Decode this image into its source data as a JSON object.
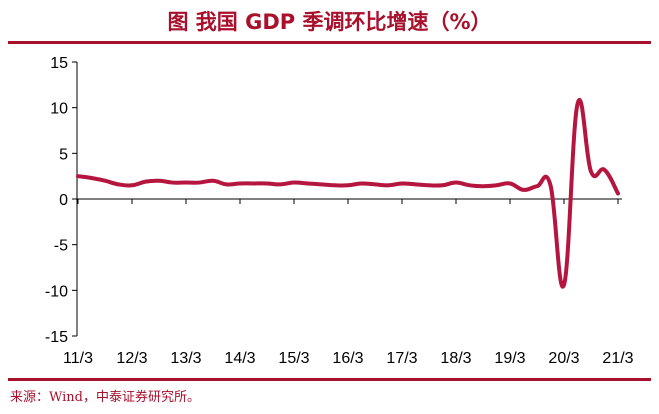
{
  "figure": {
    "title": "图  我国 GDP 季调环比增速（%）",
    "source": "来源：Wind，中泰证券研究所。"
  },
  "chart_data": {
    "type": "line",
    "title": "图  我国 GDP 季调环比增速（%）",
    "xlabel": "",
    "ylabel": "",
    "ylim": [
      -15,
      15
    ],
    "yticks": [
      15,
      10,
      5,
      0,
      -5,
      -10,
      -15
    ],
    "xticks": [
      "11/3",
      "12/3",
      "13/3",
      "14/3",
      "15/3",
      "16/3",
      "17/3",
      "18/3",
      "19/3",
      "20/3",
      "21/3"
    ],
    "grid": false,
    "legend": "none",
    "color": "#b5163f",
    "x": [
      "11/3",
      "11/6",
      "11/9",
      "11/12",
      "12/3",
      "12/6",
      "12/9",
      "12/12",
      "13/3",
      "13/6",
      "13/9",
      "13/12",
      "14/3",
      "14/6",
      "14/9",
      "14/12",
      "15/3",
      "15/6",
      "15/9",
      "15/12",
      "16/3",
      "16/6",
      "16/9",
      "16/12",
      "17/3",
      "17/6",
      "17/9",
      "17/12",
      "18/3",
      "18/6",
      "18/9",
      "18/12",
      "19/3",
      "19/6",
      "19/9",
      "19/12",
      "20/3",
      "20/6",
      "20/9",
      "20/12",
      "21/3"
    ],
    "values": [
      2.5,
      2.3,
      2.0,
      1.6,
      1.5,
      1.9,
      2.0,
      1.8,
      1.8,
      1.8,
      2.0,
      1.6,
      1.7,
      1.7,
      1.7,
      1.6,
      1.8,
      1.7,
      1.6,
      1.5,
      1.5,
      1.7,
      1.6,
      1.5,
      1.7,
      1.6,
      1.5,
      1.5,
      1.8,
      1.5,
      1.4,
      1.5,
      1.7,
      1.0,
      1.4,
      1.5,
      -9.4,
      10.4,
      3.0,
      3.2,
      0.6
    ]
  }
}
